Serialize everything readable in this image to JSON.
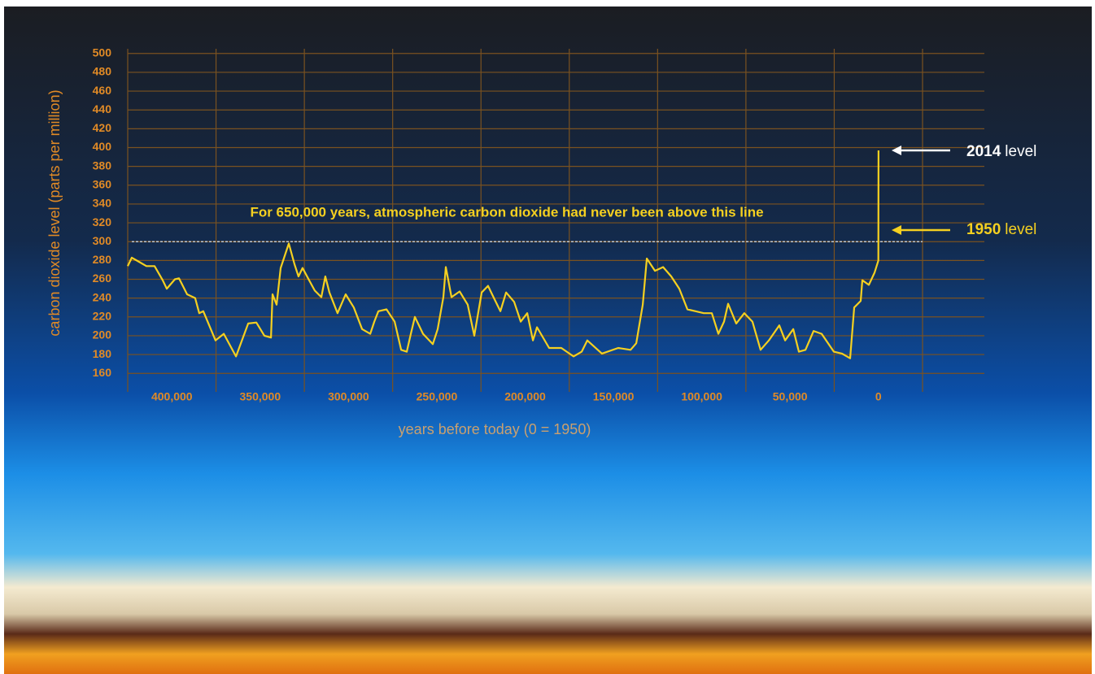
{
  "chart_data": {
    "type": "line",
    "y_label": "carbon dioxide level (parts per million)",
    "x_label": "years before today (0 = 1950)",
    "annotation": "For 650,000 years, atmospheric carbon dioxide had never been above this line",
    "reference_line": 300,
    "level_labels": [
      {
        "year": "2014",
        "text": "level",
        "color": "#ffffff"
      },
      {
        "year": "1950",
        "text": "level",
        "color": "#f5d020"
      }
    ],
    "xlim": [
      425000,
      -60000
    ],
    "ylim": [
      155,
      505
    ],
    "xticks": [
      {
        "value": 400000,
        "label": "400,000"
      },
      {
        "value": 350000,
        "label": "350,000"
      },
      {
        "value": 300000,
        "label": "300,000"
      },
      {
        "value": 250000,
        "label": "250,000"
      },
      {
        "value": 200000,
        "label": "200,000"
      },
      {
        "value": 150000,
        "label": "150,000"
      },
      {
        "value": 100000,
        "label": "100,000"
      },
      {
        "value": 50000,
        "label": "50,000"
      },
      0
    ],
    "yticks": [
      160,
      180,
      200,
      220,
      240,
      260,
      280,
      300,
      320,
      340,
      360,
      380,
      400,
      420,
      440,
      460,
      480,
      500
    ],
    "grid": true,
    "series": [
      {
        "color": "#f5d020",
        "x": [
          425000,
          422700,
          419000,
          414400,
          409800,
          405200,
          402900,
          398300,
          396000,
          391400,
          386800,
          384500,
          382200,
          375300,
          370600,
          363700,
          356800,
          352200,
          347600,
          343900,
          343000,
          340700,
          338400,
          333800,
          330600,
          328300,
          326000,
          322300,
          319100,
          315400,
          313100,
          310800,
          306200,
          301600,
          297000,
          292300,
          287700,
          285400,
          283100,
          278500,
          273900,
          270200,
          267000,
          264700,
          262400,
          257800,
          252300,
          249500,
          246300,
          244900,
          241700,
          237100,
          232500,
          228800,
          224600,
          221000,
          218700,
          214000,
          210800,
          206200,
          202500,
          198800,
          195600,
          193300,
          186400,
          179500,
          172600,
          168000,
          164800,
          156500,
          147300,
          140300,
          137100,
          133400,
          131100,
          126500,
          121900,
          117300,
          112700,
          108100,
          103500,
          98900,
          94300,
          90600,
          87400,
          85100,
          80500,
          75900,
          71300,
          66700,
          62000,
          56100,
          52800,
          48200,
          45000,
          41300,
          36700,
          32100,
          25200,
          20600,
          16000,
          13700,
          10000,
          9100,
          5400,
          2200,
          0,
          -64
        ],
        "values": [
          274,
          283,
          279,
          274,
          274,
          259,
          250,
          260,
          261,
          244,
          240,
          224,
          226,
          195,
          202,
          178,
          213,
          214,
          200,
          198,
          244,
          233,
          272,
          298,
          276,
          263,
          272,
          259,
          248,
          241,
          263,
          246,
          224,
          244,
          230,
          207,
          202,
          215,
          226,
          228,
          215,
          185,
          183,
          202,
          220,
          202,
          191,
          207,
          241,
          273,
          241,
          247,
          233,
          200,
          246,
          253,
          244,
          226,
          246,
          236,
          215,
          224,
          195,
          209,
          187,
          187,
          178,
          183,
          195,
          181,
          187,
          185,
          192,
          233,
          282,
          269,
          273,
          263,
          250,
          228,
          226,
          224,
          224,
          202,
          215,
          234,
          213,
          224,
          215,
          185,
          195,
          211,
          195,
          207,
          183,
          185,
          205,
          202,
          183,
          181,
          176,
          230,
          237,
          259,
          254,
          267,
          280,
          397
        ]
      }
    ]
  }
}
